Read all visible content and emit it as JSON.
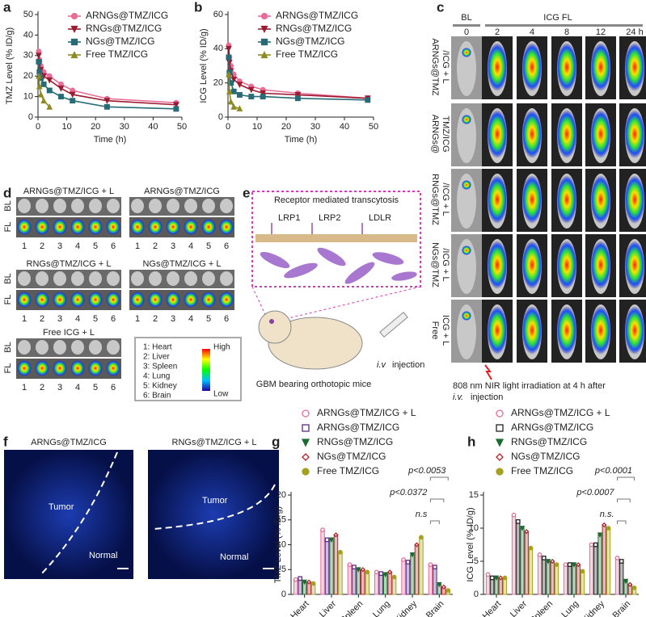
{
  "panel_labels": [
    "a",
    "b",
    "c",
    "d",
    "e",
    "f",
    "g",
    "h"
  ],
  "chart_data": [
    {
      "type": "line",
      "x_label": "Time (h)",
      "y_label": "TMZ Level (% ID/g)",
      "x": [
        0.25,
        0.5,
        1,
        2,
        4,
        8,
        12,
        24,
        48
      ],
      "xlim": [
        0,
        50
      ],
      "xticks": [
        0,
        10,
        20,
        30,
        40,
        50
      ],
      "ylim": [
        0,
        50
      ],
      "yticks": [
        0,
        10,
        20,
        30,
        40,
        50
      ],
      "series": [
        {
          "name": "ARNGs@TMZ/ICG",
          "color": "#e86d99",
          "marker": "circle",
          "values": [
            32,
            28,
            25,
            22,
            20,
            16,
            13,
            9,
            7
          ]
        },
        {
          "name": "RNGs@TMZ/ICG",
          "color": "#9b1b30",
          "marker": "down-triangle",
          "values": [
            30,
            26,
            23,
            20,
            18,
            14,
            11,
            8,
            6
          ]
        },
        {
          "name": "NGs@TMZ/ICG",
          "color": "#276b77",
          "marker": "square",
          "values": [
            27,
            22,
            19,
            16,
            13,
            10,
            8,
            5,
            4
          ]
        },
        {
          "name": "Free TMZ/ICG",
          "color": "#8e8a22",
          "marker": "triangle",
          "values": [
            20,
            15,
            11,
            8,
            5,
            null,
            null,
            null,
            null
          ]
        }
      ]
    },
    {
      "type": "line",
      "x_label": "Time (h)",
      "y_label": "ICG Level (% ID/g)",
      "x": [
        0.25,
        0.5,
        1,
        2,
        4,
        8,
        12,
        24,
        48
      ],
      "xlim": [
        0,
        50
      ],
      "xticks": [
        0,
        10,
        20,
        30,
        40,
        50
      ],
      "ylim": [
        0,
        60
      ],
      "yticks": [
        0,
        20,
        40,
        60
      ],
      "series": [
        {
          "name": "ARNGs@TMZ/ICG",
          "color": "#e86d99",
          "marker": "circle",
          "values": [
            42,
            35,
            30,
            25,
            21,
            18,
            16,
            14,
            11
          ]
        },
        {
          "name": "RNGs@TMZ/ICG",
          "color": "#9b1b30",
          "marker": "down-triangle",
          "values": [
            40,
            32,
            27,
            22,
            19,
            16,
            14,
            13,
            11
          ]
        },
        {
          "name": "NGs@TMZ/ICG",
          "color": "#276b77",
          "marker": "square",
          "values": [
            35,
            26,
            20,
            15,
            13,
            12,
            12,
            11,
            10
          ]
        },
        {
          "name": "Free TMZ/ICG",
          "color": "#8e8a22",
          "marker": "triangle",
          "values": [
            25,
            15,
            9,
            6,
            5,
            null,
            null,
            null,
            null
          ]
        }
      ]
    },
    {
      "type": "bar",
      "y_label": "TMZ Level (% ID/g)",
      "categories": [
        "Heart",
        "Liver",
        "Spleen",
        "Lung",
        "Kidney",
        "Brain"
      ],
      "ylim": [
        0,
        20
      ],
      "yticks": [
        0,
        5,
        10,
        15,
        20
      ],
      "annotations": [
        "p<0.0053",
        "p<0.0372",
        "n.s"
      ],
      "series": [
        {
          "name": "ARNGs@TMZ/ICG + L",
          "color": "#e86d99",
          "marker": "open-circle",
          "values": [
            3,
            13,
            6,
            4.5,
            7,
            6
          ]
        },
        {
          "name": "ARNGs@TMZ/ICG",
          "color": "#5b2c83",
          "marker": "open-square",
          "values": [
            3.2,
            11,
            5.5,
            4.2,
            6.5,
            5.5
          ]
        },
        {
          "name": "RNGs@TMZ/ICG",
          "color": "#1a6b2e",
          "marker": "down-triangle",
          "values": [
            2.5,
            11,
            5,
            4,
            8,
            2
          ]
        },
        {
          "name": "NGs@TMZ/ICG",
          "color": "#b5202a",
          "marker": "open-diamond",
          "values": [
            2.5,
            12,
            5,
            4.5,
            10,
            1.5
          ]
        },
        {
          "name": "Free TMZ/ICG",
          "color": "#a6a020",
          "marker": "circle",
          "values": [
            2.2,
            8.5,
            4.5,
            3.5,
            11.5,
            0.8
          ]
        }
      ]
    },
    {
      "type": "bar",
      "y_label": "ICG Level (% ID/g)",
      "categories": [
        "Heart",
        "Liver",
        "Spleen",
        "Lung",
        "Kidney",
        "Brain"
      ],
      "ylim": [
        0,
        15
      ],
      "yticks": [
        0,
        5,
        10,
        15
      ],
      "annotations": [
        "p<0.0001",
        "p<0.0007",
        "n.s."
      ],
      "series": [
        {
          "name": "ARNGs@TMZ/ICG + L",
          "color": "#e86d99",
          "marker": "open-circle",
          "values": [
            3,
            12,
            6,
            4.5,
            7.5,
            5.5
          ]
        },
        {
          "name": "ARNGs@TMZ/ICG",
          "color": "#222222",
          "marker": "open-square",
          "values": [
            2.5,
            11,
            5.5,
            4.5,
            7.5,
            5
          ]
        },
        {
          "name": "RNGs@TMZ/ICG",
          "color": "#1a6b2e",
          "marker": "down-triangle",
          "values": [
            2.5,
            10,
            5,
            4.5,
            9,
            2
          ]
        },
        {
          "name": "NGs@TMZ/ICG",
          "color": "#b5202a",
          "marker": "open-diamond",
          "values": [
            2.5,
            9.5,
            5,
            4.5,
            10.5,
            1.5
          ]
        },
        {
          "name": "Free TMZ/ICG",
          "color": "#a6a020",
          "marker": "circle",
          "values": [
            2.5,
            7,
            4.5,
            3.5,
            10,
            1
          ]
        }
      ]
    }
  ],
  "panel_c": {
    "baseline_label": "BL",
    "fluorescence_label": "ICG FL",
    "time_points": [
      "0",
      "2",
      "4",
      "8",
      "12",
      "24 h"
    ],
    "rows": [
      [
        "ARNGs@TMZ",
        "/ICG + L"
      ],
      [
        "ARNGs@",
        "TMZ/ICG"
      ],
      [
        "RNGs@TMZ",
        "/ICG + L"
      ],
      [
        "NGs@TMZ",
        "/ICG + L"
      ],
      [
        "Free",
        "ICG + L"
      ]
    ],
    "caption": [
      "808 nm NIR light irradiation at 4 h after",
      "i.v.",
      "injection"
    ]
  },
  "panel_d": {
    "groups": [
      "ARNGs@TMZ/ICG + L",
      "ARNGs@TMZ/ICG",
      "RNGs@TMZ/ICG + L",
      "NGs@TMZ/ICG + L",
      "Free ICG + L"
    ],
    "row_labels": [
      "BL",
      "FL"
    ],
    "organ_numbers": [
      "1",
      "2",
      "3",
      "4",
      "5",
      "6"
    ],
    "organ_key": [
      "1: Heart",
      "2: Liver",
      "3: Spleen",
      "4: Lung",
      "5: Kidney",
      "6: Brain"
    ],
    "scale_high": "High",
    "scale_low": "Low"
  },
  "panel_e": {
    "title": "Receptor mediated transcytosis",
    "receptors": [
      "LRP1",
      "LRP2",
      "LDLR"
    ],
    "injection_label": [
      "i.v",
      "injection"
    ],
    "model_label": "GBM bearing orthotopic mice"
  },
  "panel_f": {
    "images": [
      "ARNGs@TMZ/ICG",
      "RNGs@TMZ/ICG + L"
    ],
    "regions": [
      "Tumor",
      "Normal"
    ]
  }
}
